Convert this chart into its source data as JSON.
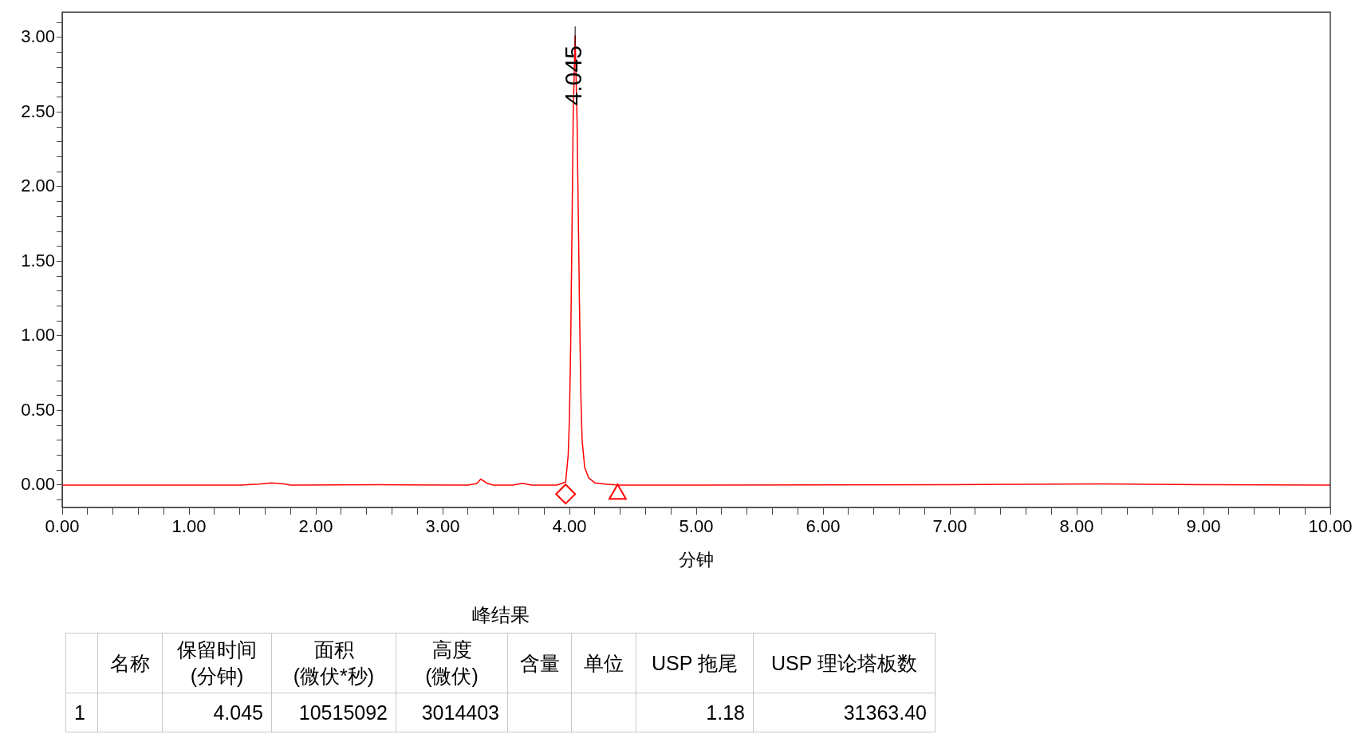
{
  "chart_data": [
    {
      "type": "line",
      "xlabel": "分钟",
      "legend": false,
      "grid": false,
      "line_style": "solid",
      "marker": "none",
      "xlim": [
        0,
        10
      ],
      "ylim": [
        -0.15,
        3.17
      ],
      "xticks": [
        {
          "value": 0,
          "label": "0.00"
        },
        {
          "value": 0.2,
          "label": null
        },
        {
          "value": 0.4,
          "label": null
        },
        {
          "value": 0.6,
          "label": null
        },
        {
          "value": 0.8,
          "label": null
        },
        {
          "value": 1,
          "label": "1.00"
        },
        {
          "value": 1.2,
          "label": null
        },
        {
          "value": 1.4,
          "label": null
        },
        {
          "value": 1.6,
          "label": null
        },
        {
          "value": 1.8,
          "label": null
        },
        {
          "value": 2,
          "label": "2.00"
        },
        {
          "value": 2.2,
          "label": null
        },
        {
          "value": 2.4,
          "label": null
        },
        {
          "value": 2.6,
          "label": null
        },
        {
          "value": 2.8,
          "label": null
        },
        {
          "value": 3,
          "label": "3.00"
        },
        {
          "value": 3.2,
          "label": null
        },
        {
          "value": 3.4,
          "label": null
        },
        {
          "value": 3.6,
          "label": null
        },
        {
          "value": 3.8,
          "label": null
        },
        {
          "value": 4,
          "label": "4.00"
        },
        {
          "value": 4.2,
          "label": null
        },
        {
          "value": 4.4,
          "label": null
        },
        {
          "value": 4.6,
          "label": null
        },
        {
          "value": 4.8,
          "label": null
        },
        {
          "value": 5,
          "label": "5.00"
        },
        {
          "value": 5.2,
          "label": null
        },
        {
          "value": 5.4,
          "label": null
        },
        {
          "value": 5.6,
          "label": null
        },
        {
          "value": 5.8,
          "label": null
        },
        {
          "value": 6,
          "label": "6.00"
        },
        {
          "value": 6.2,
          "label": null
        },
        {
          "value": 6.4,
          "label": null
        },
        {
          "value": 6.6,
          "label": null
        },
        {
          "value": 6.8,
          "label": null
        },
        {
          "value": 7,
          "label": "7.00"
        },
        {
          "value": 7.2,
          "label": null
        },
        {
          "value": 7.4,
          "label": null
        },
        {
          "value": 7.6,
          "label": null
        },
        {
          "value": 7.8,
          "label": null
        },
        {
          "value": 8,
          "label": "8.00"
        },
        {
          "value": 8.2,
          "label": null
        },
        {
          "value": 8.4,
          "label": null
        },
        {
          "value": 8.6,
          "label": null
        },
        {
          "value": 8.8,
          "label": null
        },
        {
          "value": 9,
          "label": "9.00"
        },
        {
          "value": 9.2,
          "label": null
        },
        {
          "value": 9.4,
          "label": null
        },
        {
          "value": 9.6,
          "label": null
        },
        {
          "value": 9.8,
          "label": null
        },
        {
          "value": 10,
          "label": "10.00"
        }
      ],
      "yticks": [
        {
          "value": -0.1,
          "label": null
        },
        {
          "value": 0,
          "label": "0.00"
        },
        {
          "value": 0.1,
          "label": null
        },
        {
          "value": 0.2,
          "label": null
        },
        {
          "value": 0.3,
          "label": null
        },
        {
          "value": 0.4,
          "label": null
        },
        {
          "value": 0.5,
          "label": "0.50"
        },
        {
          "value": 0.6,
          "label": null
        },
        {
          "value": 0.7,
          "label": null
        },
        {
          "value": 0.8,
          "label": null
        },
        {
          "value": 0.9,
          "label": null
        },
        {
          "value": 1,
          "label": "1.00"
        },
        {
          "value": 1.1,
          "label": null
        },
        {
          "value": 1.2,
          "label": null
        },
        {
          "value": 1.3,
          "label": null
        },
        {
          "value": 1.4,
          "label": null
        },
        {
          "value": 1.5,
          "label": "1.50"
        },
        {
          "value": 1.6,
          "label": null
        },
        {
          "value": 1.7,
          "label": null
        },
        {
          "value": 1.8,
          "label": null
        },
        {
          "value": 1.9,
          "label": null
        },
        {
          "value": 2,
          "label": "2.00"
        },
        {
          "value": 2.1,
          "label": null
        },
        {
          "value": 2.2,
          "label": null
        },
        {
          "value": 2.3,
          "label": null
        },
        {
          "value": 2.4,
          "label": null
        },
        {
          "value": 2.5,
          "label": "2.50"
        },
        {
          "value": 2.6,
          "label": null
        },
        {
          "value": 2.7,
          "label": null
        },
        {
          "value": 2.8,
          "label": null
        },
        {
          "value": 2.9,
          "label": null
        },
        {
          "value": 3,
          "label": "3.00"
        },
        {
          "value": 3.1,
          "label": null
        }
      ],
      "series": [
        {
          "type": "line",
          "color": "#ff0000",
          "x": [
            0,
            1.4,
            1.55,
            1.65,
            1.75,
            1.8,
            2.5,
            3.2,
            3.27,
            3.3,
            3.35,
            3.4,
            3.55,
            3.63,
            3.7,
            3.9,
            3.97,
            3.99,
            4.0,
            4.01,
            4.02,
            4.03,
            4.045,
            4.06,
            4.07,
            4.08,
            4.09,
            4.1,
            4.12,
            4.15,
            4.2,
            4.3,
            4.4,
            5,
            7,
            8.2,
            9,
            10
          ],
          "values": [
            0,
            0,
            0.006,
            0.015,
            0.008,
            0,
            0.002,
            0,
            0.01,
            0.04,
            0.012,
            0,
            0,
            0.012,
            0,
            0,
            0.02,
            0.2,
            0.45,
            0.95,
            1.71,
            2.5,
            3.01,
            2.45,
            1.8,
            1.15,
            0.6,
            0.3,
            0.12,
            0.05,
            0.015,
            0.005,
            0,
            0,
            0.003,
            0.008,
            0.003,
            0
          ]
        },
        {
          "type": "scatter",
          "marker": "diamond",
          "color": "#ff0000",
          "x": [
            3.97
          ],
          "values": [
            -0.06
          ]
        },
        {
          "type": "scatter",
          "marker": "triangle",
          "color": "#ff0000",
          "x": [
            4.38
          ],
          "values": [
            -0.06
          ]
        }
      ],
      "annotations": [
        {
          "text": "4.045",
          "x": 4.045,
          "y": 3.01
        }
      ]
    },
    {
      "type": "other",
      "title": "峰结果",
      "categories": [
        null,
        "名称",
        "保留时间\n(分钟)",
        "面积\n(微伏*秒)",
        "高度\n(微伏)",
        "含量",
        "单位",
        "USP 拖尾",
        "USP 理论塔板数"
      ],
      "cell_labels": [
        [
          "1",
          null,
          "4.045",
          "10515092",
          "3014403",
          null,
          null,
          "1.18",
          "31363.40"
        ]
      ]
    }
  ]
}
